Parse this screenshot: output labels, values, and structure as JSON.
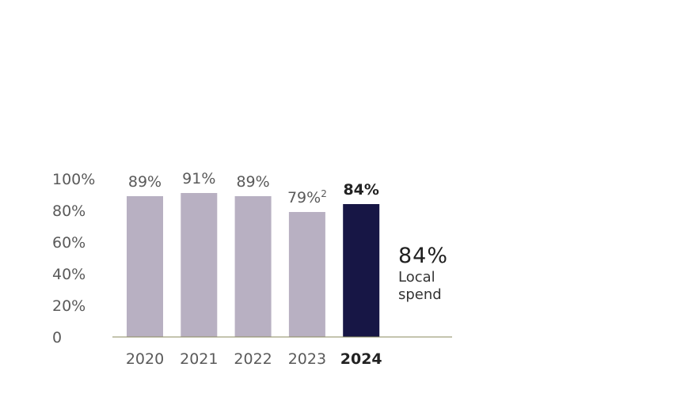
{
  "chart_data": {
    "type": "bar",
    "categories": [
      "2020",
      "2021",
      "2022",
      "2023",
      "2024"
    ],
    "values": [
      89,
      91,
      89,
      79,
      84
    ],
    "data_labels": [
      "89%",
      "91%",
      "89%",
      "79%",
      "84%"
    ],
    "data_label_footnotes": [
      "",
      "",
      "",
      "2",
      ""
    ],
    "highlight_index": 4,
    "y_ticks": [
      "0",
      "20%",
      "40%",
      "60%",
      "80%",
      "100%"
    ],
    "ylim": [
      0,
      100
    ],
    "grid": false,
    "colors": {
      "bar": "#b8b0c2",
      "highlight_bar": "#171645",
      "baseline": "#8a8a5c"
    }
  },
  "callout": {
    "value": "84%",
    "line1": "Local",
    "line2": "spend"
  }
}
